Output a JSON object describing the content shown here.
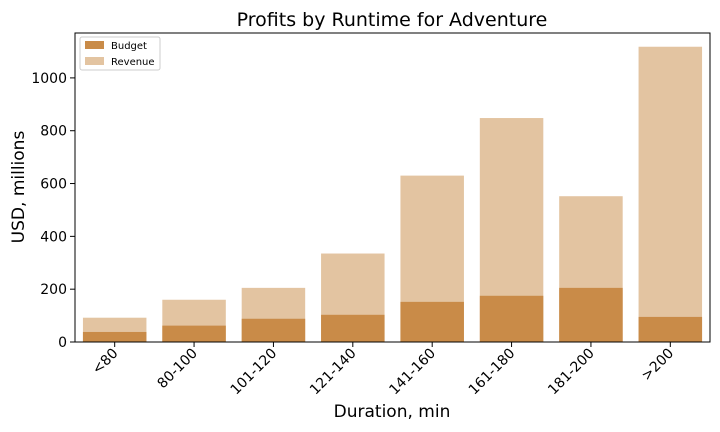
{
  "chart_data": {
    "type": "bar",
    "title": "Profits by Runtime for Adventure",
    "xlabel": "Duration, min",
    "ylabel": "USD, millions",
    "categories": [
      "<80",
      "80-100",
      "101-120",
      "121-140",
      "141-160",
      "161-180",
      "181-200",
      ">200"
    ],
    "series": [
      {
        "name": "Budget",
        "color": "#c98b48",
        "values": [
          38,
          62,
          88,
          103,
          152,
          175,
          205,
          95
        ]
      },
      {
        "name": "Revenue",
        "color": "#e3c4a1",
        "values": [
          92,
          160,
          205,
          335,
          630,
          848,
          552,
          1118
        ]
      }
    ],
    "ylim": [
      0,
      1170
    ],
    "yticks": [
      0,
      200,
      400,
      600,
      800,
      1000
    ],
    "grid": false,
    "legend_position": "top-left",
    "overlay": true
  }
}
